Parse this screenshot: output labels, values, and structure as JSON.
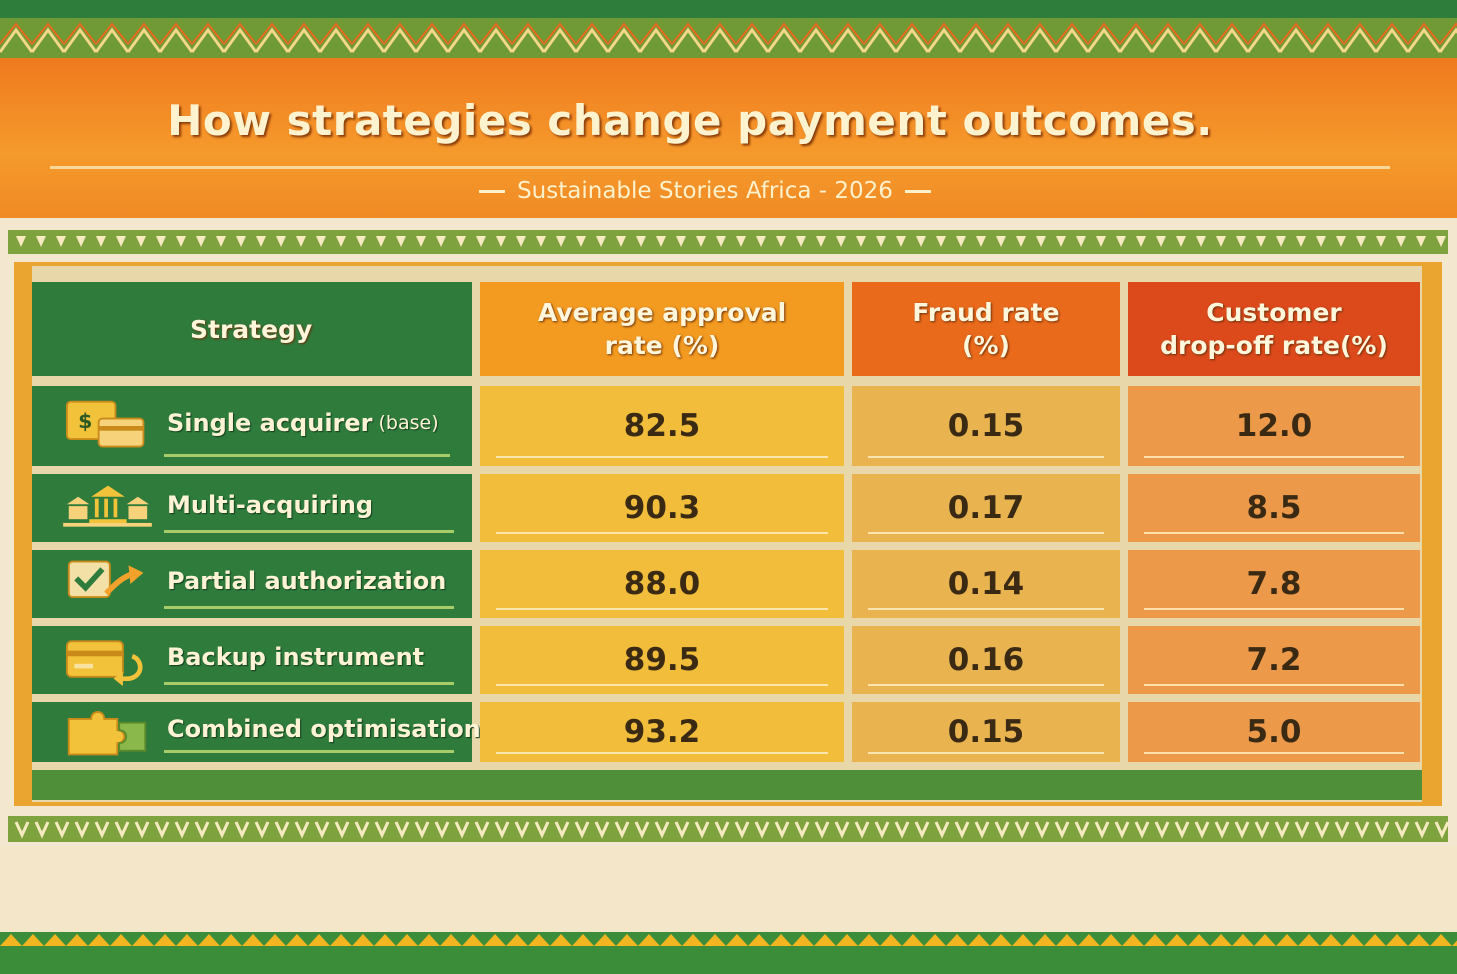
{
  "header": {
    "title": "How strategies change payment outcomes.",
    "subtitle": "Sustainable Stories Africa - 2026"
  },
  "chart_data": {
    "type": "table",
    "columns": [
      {
        "key": "strategy",
        "label_lines": [
          "Strategy"
        ]
      },
      {
        "key": "approval",
        "label_lines": [
          "Average approval",
          "rate (%)"
        ]
      },
      {
        "key": "fraud",
        "label_lines": [
          "Fraud rate",
          "(%)"
        ]
      },
      {
        "key": "dropoff",
        "label_lines": [
          "Customer",
          "drop-off rate(%)"
        ]
      }
    ],
    "rows": [
      {
        "strategy": "Single acquirer",
        "qualifier": "(base)",
        "icon": "money-card-icon",
        "approval": "82.5",
        "fraud": "0.15",
        "dropoff": "12.0"
      },
      {
        "strategy": "Multi-acquiring",
        "qualifier": "",
        "icon": "banks-icon",
        "approval": "90.3",
        "fraud": "0.17",
        "dropoff": "8.5"
      },
      {
        "strategy": "Partial authorization",
        "qualifier": "",
        "icon": "check-arrow-icon",
        "approval": "88.0",
        "fraud": "0.14",
        "dropoff": "7.8"
      },
      {
        "strategy": "Backup instrument",
        "qualifier": "",
        "icon": "card-return-icon",
        "approval": "89.5",
        "fraud": "0.16",
        "dropoff": "7.2"
      },
      {
        "strategy": "Combined optimisation",
        "qualifier": "",
        "icon": "puzzle-icon",
        "approval": "93.2",
        "fraud": "0.15",
        "dropoff": "5.0"
      }
    ]
  },
  "colors": {
    "strategy_header": "#2e7b3c",
    "approval_header": "#f39a20",
    "fraud_header": "#ea6a1c",
    "dropoff_header": "#dc4a1c",
    "approval_cell": "#f1bd3a",
    "fraud_cell": "#e9b450",
    "dropoff_cell": "#ec9a4a",
    "row_green": "#2e7b3c"
  }
}
